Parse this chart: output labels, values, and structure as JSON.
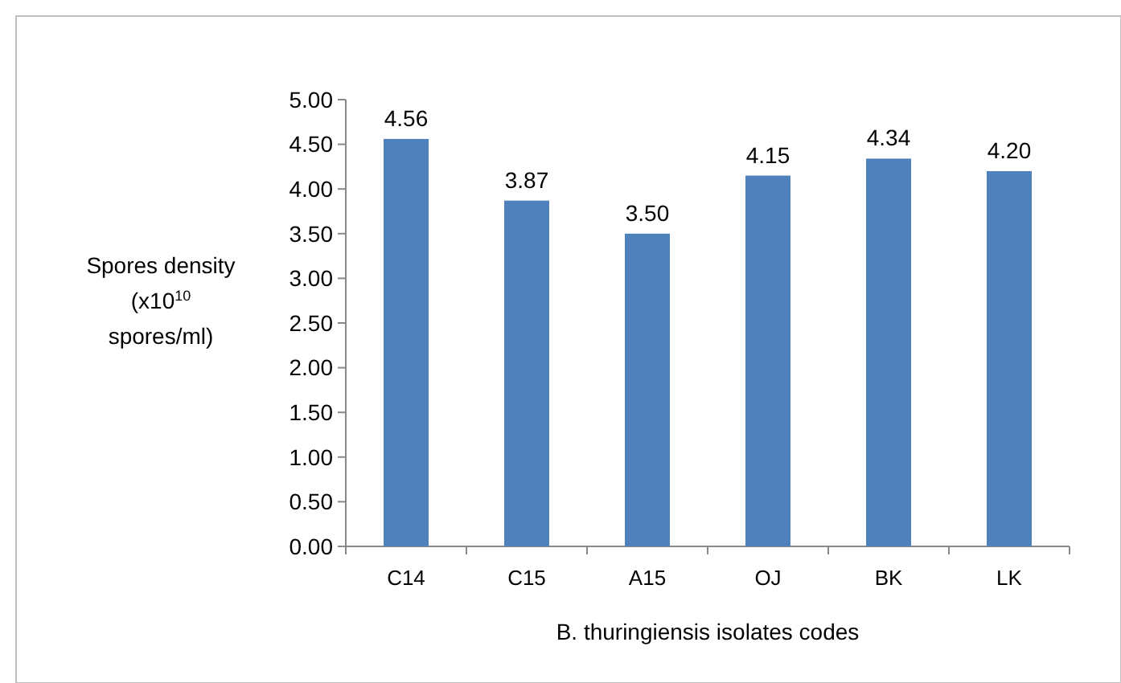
{
  "chart_data": {
    "type": "bar",
    "xlabel": "B. thuringiensis isolates codes",
    "ylabel": "Spores density (x10$^{10}$ spores/ml)",
    "categories": [
      "C14",
      "C15",
      "A15",
      "OJ",
      "BK",
      "LK"
    ],
    "values": [
      4.56,
      3.87,
      3.5,
      4.15,
      4.34,
      4.2
    ],
    "value_labels": [
      "4.56",
      "3.87",
      "3.50",
      "4.15",
      "4.34",
      "4.20"
    ],
    "color": "#4f81bd",
    "ylim": [
      0,
      5
    ],
    "yticks": [
      {
        "value": 0,
        "label": "0.00"
      },
      {
        "value": 0.5,
        "label": "0.50"
      },
      {
        "value": 1,
        "label": "1.00"
      },
      {
        "value": 1.5,
        "label": "1.50"
      },
      {
        "value": 2,
        "label": "2.00"
      },
      {
        "value": 2.5,
        "label": "2.50"
      },
      {
        "value": 3,
        "label": "3.00"
      },
      {
        "value": 3.5,
        "label": "3.50"
      },
      {
        "value": 4,
        "label": "4.00"
      },
      {
        "value": 4.5,
        "label": "4.50"
      },
      {
        "value": 5,
        "label": "5.00"
      }
    ]
  }
}
